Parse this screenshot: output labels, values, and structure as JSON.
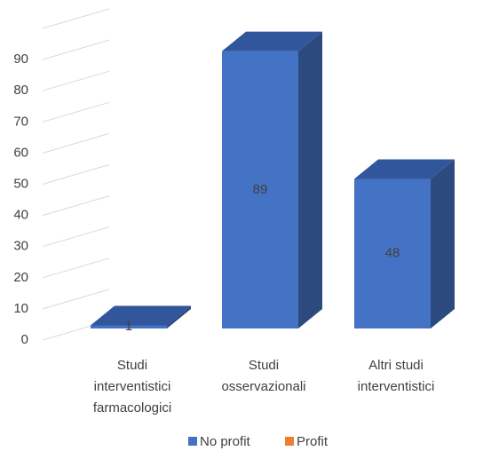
{
  "chart_data": {
    "type": "bar3d",
    "categories": [
      [
        "Studi",
        "interventistici",
        "farmacologici"
      ],
      [
        "Studi",
        "osservazionali"
      ],
      [
        "Altri studi",
        "interventistici"
      ]
    ],
    "series": [
      {
        "name": "No profit",
        "color": "#4472c4",
        "top_color": "#31569c",
        "side_color": "#2c4a7e",
        "values": [
          1,
          89,
          48
        ]
      },
      {
        "name": "Profit",
        "color": "#ed7d31",
        "values": [
          null,
          null,
          null
        ]
      }
    ],
    "ylim": [
      0,
      100
    ],
    "yticks": [
      0,
      10,
      20,
      30,
      40,
      50,
      60,
      70,
      80,
      90
    ],
    "grid": true,
    "legend": "bottom"
  }
}
